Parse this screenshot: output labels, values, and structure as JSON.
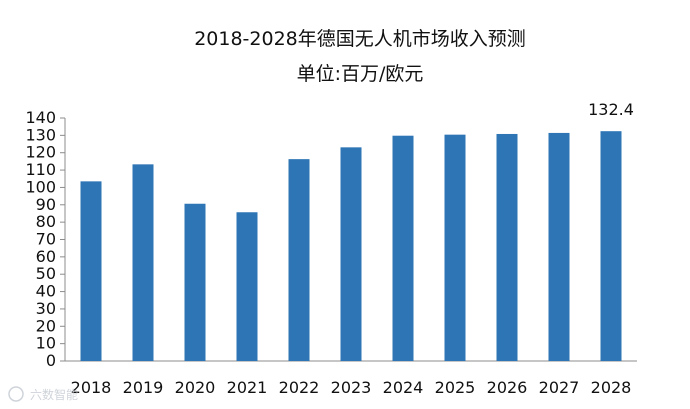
{
  "chart_data": {
    "type": "bar",
    "title": "2018-2028年德国无人机市场收入预测",
    "subtitle": "单位:百万/欧元",
    "categories": [
      "2018",
      "2019",
      "2020",
      "2021",
      "2022",
      "2023",
      "2024",
      "2025",
      "2026",
      "2027",
      "2028"
    ],
    "values": [
      103.5,
      113.3,
      90.6,
      85.7,
      116.3,
      123.1,
      129.8,
      130.4,
      130.8,
      131.4,
      132.4
    ],
    "ylim": [
      0,
      140
    ],
    "ytick_step": 10,
    "data_labels": [
      {
        "index": 10,
        "text": "132.4"
      }
    ],
    "bar_color": "#2e75b6",
    "grid": false,
    "legend": "none"
  },
  "watermark": {
    "text": "六数智能"
  }
}
